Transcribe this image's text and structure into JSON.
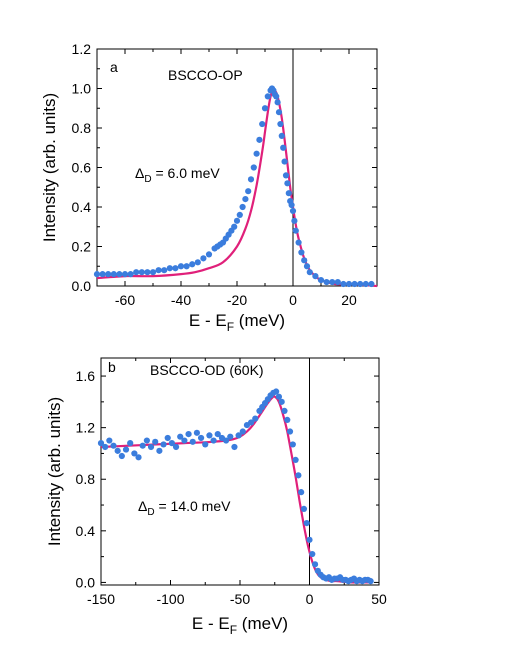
{
  "chart_data": [
    {
      "type": "scatter",
      "panel_label": "a",
      "title": "BSCCO-OP",
      "annotation": {
        "symbol": "Δ",
        "subscript": "D",
        "text": " = 6.0 meV"
      },
      "xlabel": {
        "main": "E - E",
        "sub": "F",
        "unit": " (meV)"
      },
      "ylabel": "Intensity (arb. units)",
      "xlim": [
        -70,
        30
      ],
      "ylim": [
        0,
        1.2
      ],
      "xticks": [
        -60,
        -40,
        -20,
        0,
        20
      ],
      "yticks": [
        0.0,
        0.2,
        0.4,
        0.6,
        0.8,
        1.0,
        1.2
      ],
      "xtick_labels": [
        "-60",
        "-40",
        "-20",
        "0",
        "20"
      ],
      "ytick_labels": [
        "0.0",
        "0.2",
        "0.4",
        "0.6",
        "0.8",
        "1.0",
        "1.2"
      ],
      "vline_x": 0,
      "colors": {
        "points": "#3b7ddd",
        "fit": "#e0207a"
      },
      "points": {
        "x": [
          -70,
          -68,
          -66,
          -64,
          -62,
          -60,
          -58,
          -56,
          -54,
          -52,
          -50,
          -48,
          -46,
          -44,
          -42,
          -40,
          -38,
          -36,
          -34,
          -32,
          -30,
          -28,
          -27,
          -26,
          -25,
          -24,
          -23,
          -22,
          -21,
          -20,
          -19,
          -18,
          -17,
          -16,
          -15,
          -14,
          -13,
          -12,
          -11,
          -10,
          -9,
          -8,
          -7.5,
          -7,
          -6.5,
          -6,
          -5.5,
          -5,
          -4.5,
          -4,
          -3.5,
          -3,
          -2.5,
          -2,
          -1.5,
          -1,
          -0.5,
          0,
          0.5,
          1,
          2,
          3,
          4,
          5,
          6,
          8,
          10,
          12,
          14,
          16,
          18,
          20,
          22,
          24,
          26,
          28
        ],
        "y": [
          0.06,
          0.06,
          0.06,
          0.06,
          0.06,
          0.06,
          0.06,
          0.07,
          0.07,
          0.07,
          0.07,
          0.08,
          0.08,
          0.09,
          0.09,
          0.1,
          0.1,
          0.11,
          0.12,
          0.14,
          0.16,
          0.19,
          0.2,
          0.21,
          0.22,
          0.24,
          0.26,
          0.28,
          0.3,
          0.33,
          0.36,
          0.4,
          0.44,
          0.48,
          0.54,
          0.6,
          0.67,
          0.74,
          0.82,
          0.9,
          0.96,
          0.99,
          1.0,
          0.99,
          0.97,
          0.96,
          0.93,
          0.88,
          0.82,
          0.76,
          0.7,
          0.63,
          0.56,
          0.52,
          0.47,
          0.43,
          0.41,
          0.38,
          0.33,
          0.28,
          0.22,
          0.17,
          0.13,
          0.1,
          0.07,
          0.05,
          0.03,
          0.02,
          0.02,
          0.02,
          0.01,
          0.01,
          0.01,
          0.01,
          0.01,
          0.01
        ]
      },
      "fit": {
        "x": [
          -70,
          -60,
          -50,
          -40,
          -35,
          -30,
          -25,
          -20,
          -17,
          -15,
          -13,
          -11,
          -10,
          -9,
          -8,
          -7,
          -6,
          -5,
          -4,
          -3,
          -2,
          -1,
          0,
          1,
          2,
          4,
          6,
          8,
          10,
          15,
          20,
          30
        ],
        "y": [
          0.04,
          0.05,
          0.05,
          0.06,
          0.07,
          0.09,
          0.12,
          0.2,
          0.29,
          0.38,
          0.51,
          0.68,
          0.78,
          0.88,
          0.96,
          0.99,
          0.98,
          0.93,
          0.85,
          0.74,
          0.62,
          0.5,
          0.4,
          0.31,
          0.24,
          0.14,
          0.08,
          0.05,
          0.03,
          0.01,
          0.01,
          0.0
        ]
      }
    },
    {
      "type": "scatter",
      "panel_label": "b",
      "title": "BSCCO-OD (60K)",
      "annotation": {
        "symbol": "Δ",
        "subscript": "D",
        "text": " = 14.0 meV"
      },
      "xlabel": {
        "main": "E - E",
        "sub": "F",
        "unit": " (meV)"
      },
      "ylabel": "Intensity (arb. units)",
      "xlim": [
        -150,
        50
      ],
      "ylim": [
        -0.02,
        1.74
      ],
      "xticks": [
        -150,
        -100,
        -50,
        0,
        50
      ],
      "yticks": [
        0.0,
        0.4,
        0.8,
        1.2,
        1.6
      ],
      "xtick_labels": [
        "-150",
        "-100",
        "-50",
        "0",
        "50"
      ],
      "ytick_labels": [
        "0.0",
        "0.4",
        "0.8",
        "1.2",
        "1.6"
      ],
      "vline_x": 0,
      "colors": {
        "points": "#3b7ddd",
        "fit": "#e0207a"
      },
      "points": {
        "x": [
          -150,
          -147,
          -144,
          -141,
          -138,
          -135,
          -132,
          -129,
          -126,
          -123,
          -120,
          -117,
          -114,
          -111,
          -108,
          -105,
          -102,
          -99,
          -96,
          -93,
          -90,
          -87,
          -84,
          -81,
          -78,
          -75,
          -72,
          -69,
          -66,
          -63,
          -60,
          -57,
          -54,
          -51,
          -48,
          -45,
          -42,
          -39,
          -36,
          -34,
          -32,
          -30,
          -28,
          -26,
          -24,
          -22,
          -20,
          -18,
          -16,
          -14,
          -12,
          -10,
          -8,
          -6,
          -4,
          -2,
          0,
          2,
          4,
          6,
          8,
          10,
          12,
          14,
          16,
          18,
          20,
          22,
          24,
          26,
          28,
          30,
          32,
          34,
          36,
          38,
          40,
          42,
          44
        ],
        "y": [
          1.08,
          1.05,
          1.1,
          1.06,
          1.02,
          0.98,
          1.03,
          1.08,
          1.0,
          0.97,
          1.06,
          1.1,
          1.05,
          1.09,
          1.02,
          1.07,
          1.12,
          1.08,
          1.05,
          1.13,
          1.1,
          1.15,
          1.09,
          1.16,
          1.12,
          1.07,
          1.14,
          1.1,
          1.15,
          1.12,
          1.1,
          1.13,
          1.05,
          1.14,
          1.17,
          1.22,
          1.24,
          1.27,
          1.33,
          1.36,
          1.39,
          1.42,
          1.45,
          1.47,
          1.48,
          1.44,
          1.4,
          1.33,
          1.26,
          1.17,
          1.07,
          0.95,
          0.83,
          0.7,
          0.57,
          0.46,
          0.33,
          0.22,
          0.14,
          0.09,
          0.06,
          0.04,
          0.03,
          0.04,
          0.02,
          0.03,
          0.03,
          0.04,
          0.02,
          0.02,
          0.01,
          0.02,
          0.03,
          0.01,
          0.02,
          0.01,
          0.02,
          0.02,
          0.01
        ]
      },
      "fit": {
        "x": [
          -150,
          -130,
          -110,
          -90,
          -70,
          -60,
          -55,
          -50,
          -45,
          -40,
          -35,
          -30,
          -27,
          -25,
          -22,
          -19,
          -16,
          -13,
          -10,
          -7,
          -4,
          -1,
          2,
          5,
          8,
          12,
          16,
          20,
          30,
          40,
          45
        ],
        "y": [
          1.05,
          1.06,
          1.07,
          1.08,
          1.09,
          1.1,
          1.11,
          1.13,
          1.17,
          1.23,
          1.31,
          1.39,
          1.43,
          1.44,
          1.4,
          1.3,
          1.17,
          1.0,
          0.82,
          0.62,
          0.44,
          0.28,
          0.16,
          0.08,
          0.04,
          0.02,
          0.01,
          0.01,
          0.0,
          0.0,
          0.0
        ]
      }
    }
  ]
}
